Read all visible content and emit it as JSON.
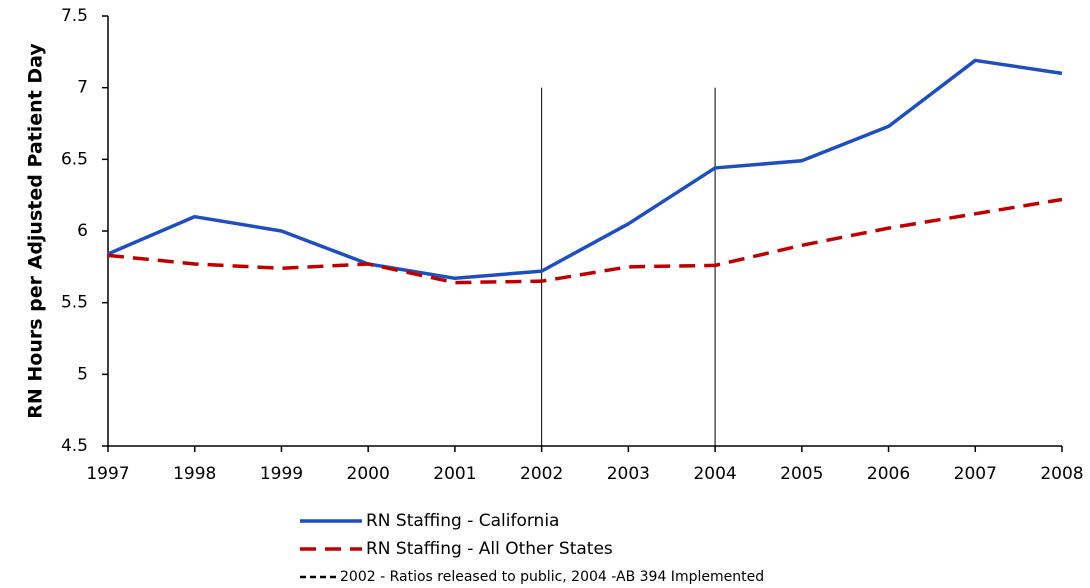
{
  "chart_data": {
    "type": "line",
    "y_label": "RN Hours per Adjusted Patient Day",
    "categories": [
      "1997",
      "1998",
      "1999",
      "2000",
      "2001",
      "2002",
      "2003",
      "2004",
      "2005",
      "2006",
      "2007",
      "2008"
    ],
    "series": [
      {
        "name": "RN Staffing - California",
        "color": "#1f4fbf",
        "style": "solid",
        "values": [
          5.84,
          6.1,
          6.0,
          5.77,
          5.67,
          5.72,
          6.05,
          6.44,
          6.49,
          6.73,
          7.19,
          7.1
        ]
      },
      {
        "name": "RN Staffing - All Other States",
        "color": "#c00000",
        "style": "dashed",
        "values": [
          5.83,
          5.77,
          5.74,
          5.77,
          5.64,
          5.65,
          5.75,
          5.76,
          5.9,
          6.02,
          6.12,
          6.22
        ]
      }
    ],
    "markers": {
      "label": "2002 - Ratios released to public, 2004 -AB 394 Implemented",
      "color": "#000000",
      "at": [
        "2002",
        "2004"
      ]
    },
    "ylim": [
      4.5,
      7.5
    ],
    "yticks": [
      4.5,
      5,
      5.5,
      6,
      6.5,
      7,
      7.5
    ],
    "grid": false
  }
}
